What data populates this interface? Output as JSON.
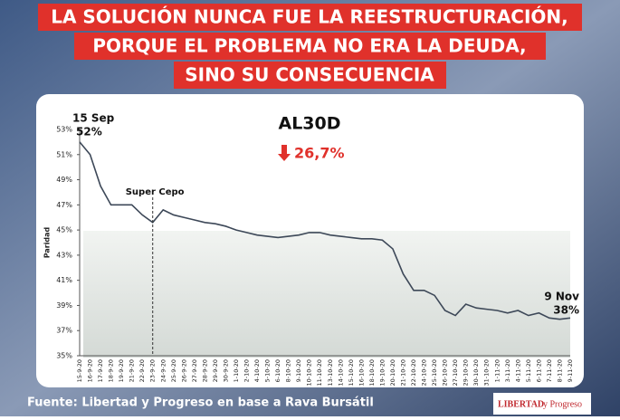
{
  "chart_data": {
    "type": "line",
    "title_lines": [
      "LA SOLUCIÓN NUNCA FUE LA REESTRUCTURACIÓN,",
      "PORQUE EL PROBLEMA NO ERA LA DEUDA,",
      "SINO SU CONSECUENCIA"
    ],
    "headline": "AL30D",
    "change": "26,7%",
    "y_label": "Paridad",
    "annotations": [
      "15 Sep",
      "52%",
      "Super Cepo",
      "9 Nov",
      "38%"
    ],
    "source": "Fuente: Libertad y Progreso en base a Rava Bursátil",
    "logo": [
      "LIBERTAD",
      "y Progreso"
    ],
    "categories": [
      "15-9-20",
      "16-9-20",
      "17-9-20",
      "18-9-20",
      "19-9-20",
      "21-9-20",
      "22-9-20",
      "23-9-20",
      "24-9-20",
      "25-9-20",
      "26-9-20",
      "27-9-20",
      "28-9-20",
      "29-9-20",
      "30-9-20",
      "1-10-20",
      "2-10-20",
      "4-10-20",
      "5-10-20",
      "6-10-20",
      "8-10-20",
      "9-10-20",
      "10-10-20",
      "11-10-20",
      "13-10-20",
      "14-10-20",
      "15-10-20",
      "16-10-20",
      "18-10-20",
      "19-10-20",
      "20-10-20",
      "21-10-20",
      "22-10-20",
      "24-10-20",
      "25-10-20",
      "26-10-20",
      "27-10-20",
      "29-10-20",
      "30-10-20",
      "31-10-20",
      "1-11-20",
      "3-11-20",
      "4-11-20",
      "5-11-20",
      "6-11-20",
      "7-11-20",
      "8-11-20",
      "9-11-20"
    ],
    "values": [
      52,
      51,
      48.5,
      47,
      47,
      47,
      46.2,
      45.6,
      46.6,
      46.2,
      46,
      45.8,
      45.6,
      45.5,
      45.3,
      45,
      44.8,
      44.6,
      44.5,
      44.4,
      44.5,
      44.6,
      44.8,
      44.8,
      44.6,
      44.5,
      44.4,
      44.3,
      44.3,
      44.2,
      43.5,
      41.5,
      40.2,
      40.2,
      39.8,
      38.6,
      38.2,
      39.1,
      38.8,
      38.7,
      38.6,
      38.4,
      38.6,
      38.2,
      38.4,
      38,
      37.9,
      38
    ],
    "color": "#3d4858",
    "ylim": [
      35,
      53
    ],
    "yticks": [
      {
        "value": 35,
        "label": "35%"
      },
      {
        "value": 37,
        "label": "37%"
      },
      {
        "value": 39,
        "label": "39%"
      },
      {
        "value": 41,
        "label": "41%"
      },
      {
        "value": 43,
        "label": "43%"
      },
      {
        "value": 45,
        "label": "45%"
      },
      {
        "value": 47,
        "label": "47%"
      },
      {
        "value": 49,
        "label": "49%"
      },
      {
        "value": 51,
        "label": "51%"
      },
      {
        "value": 53,
        "label": "53%"
      }
    ],
    "grid": false
  }
}
